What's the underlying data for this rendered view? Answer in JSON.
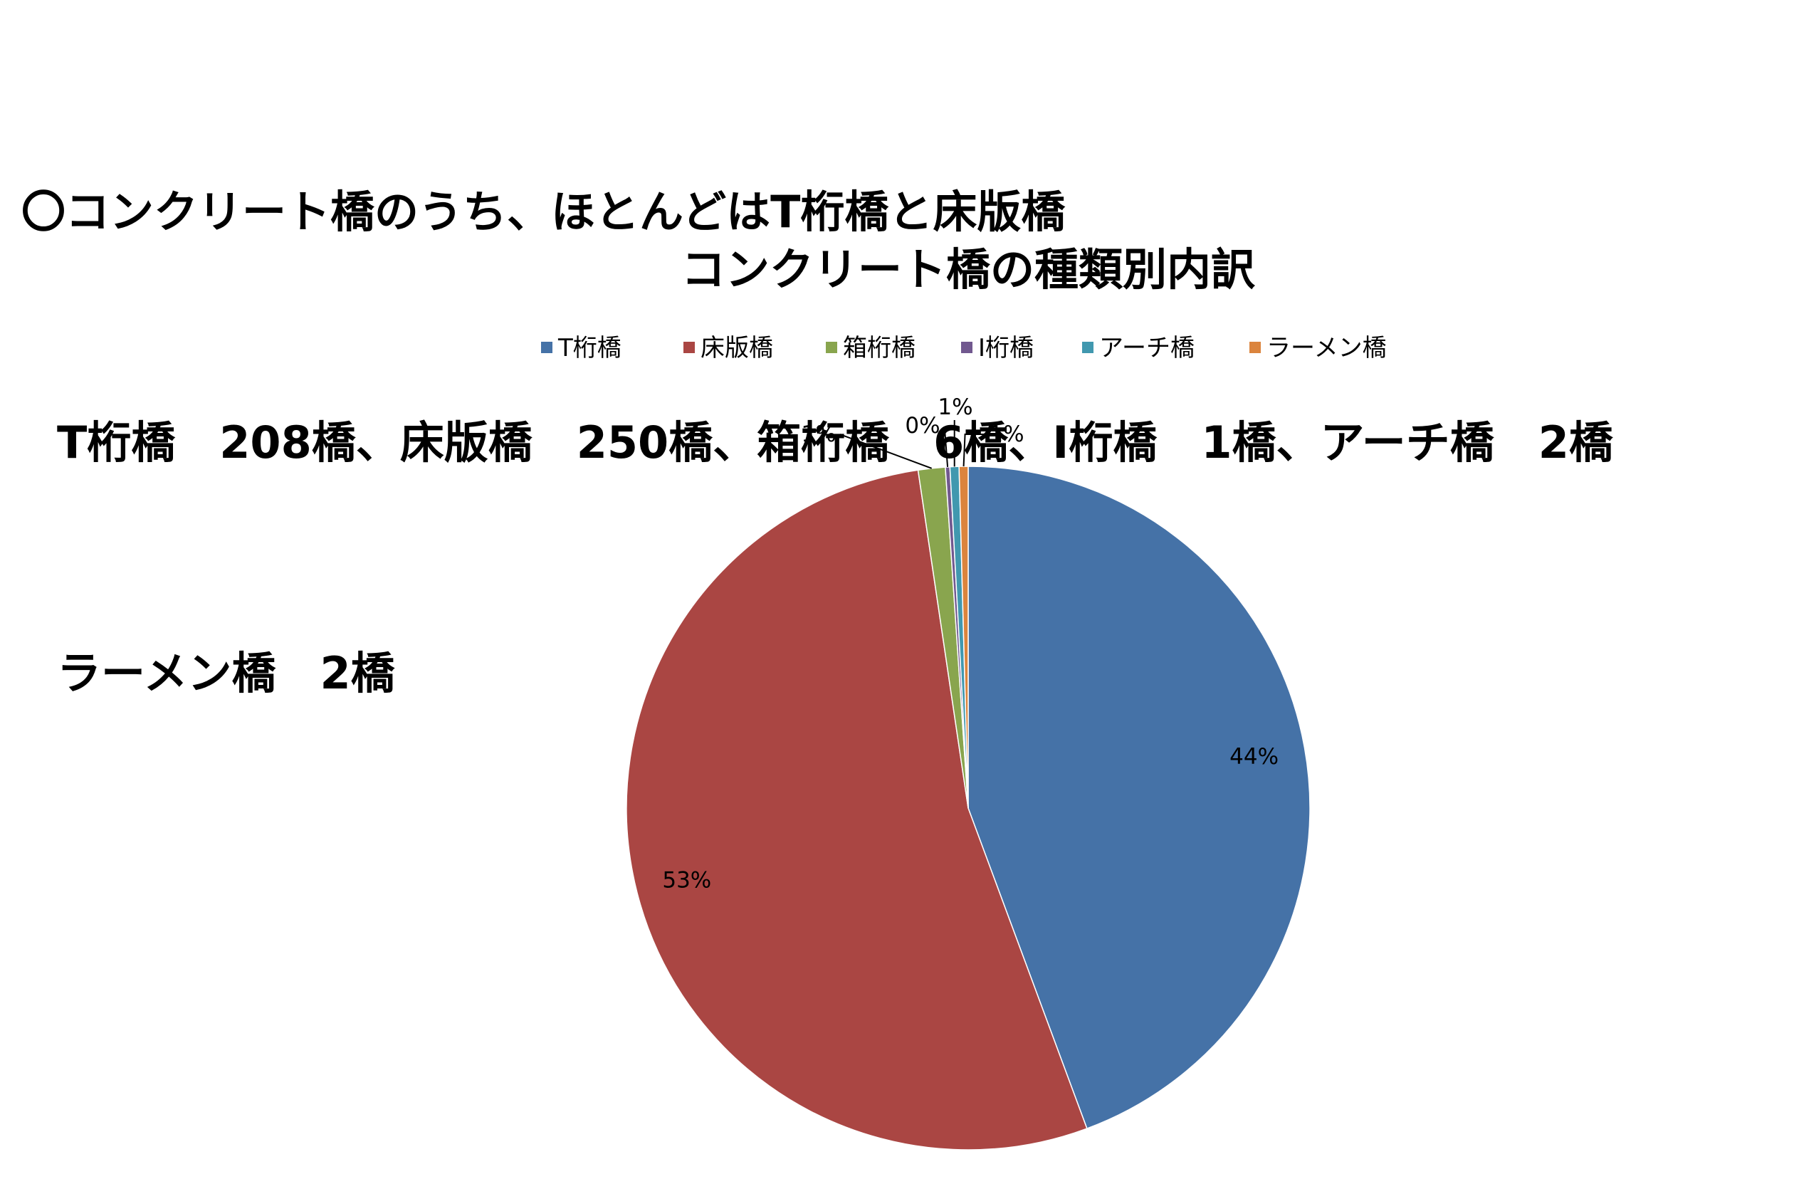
{
  "summary": {
    "line1": "〇コンクリート橋のうち、ほとんどはT桁橋と床版橋",
    "line2": "T桁橋　208橋、床版橋　250橋、箱桁橋　6橋、I桁橋　1橋、アーチ橋　2橋",
    "line3": "ラーメン橋　2橋"
  },
  "chart_data": {
    "type": "pie",
    "title": "コンクリート橋の種類別内訳",
    "legend_position": "top",
    "categories": [
      "T桁橋",
      "床版橋",
      "箱桁橋",
      "I桁橋",
      "アーチ橋",
      "ラーメン橋"
    ],
    "values": [
      208,
      250,
      6,
      1,
      2,
      2
    ],
    "percent_labels": [
      "44%",
      "53%",
      "1%",
      "0%",
      "1%",
      "1%"
    ],
    "colors": [
      "#4572A7",
      "#AA4643",
      "#89A54E",
      "#71588F",
      "#4198AF",
      "#DB843D"
    ]
  }
}
